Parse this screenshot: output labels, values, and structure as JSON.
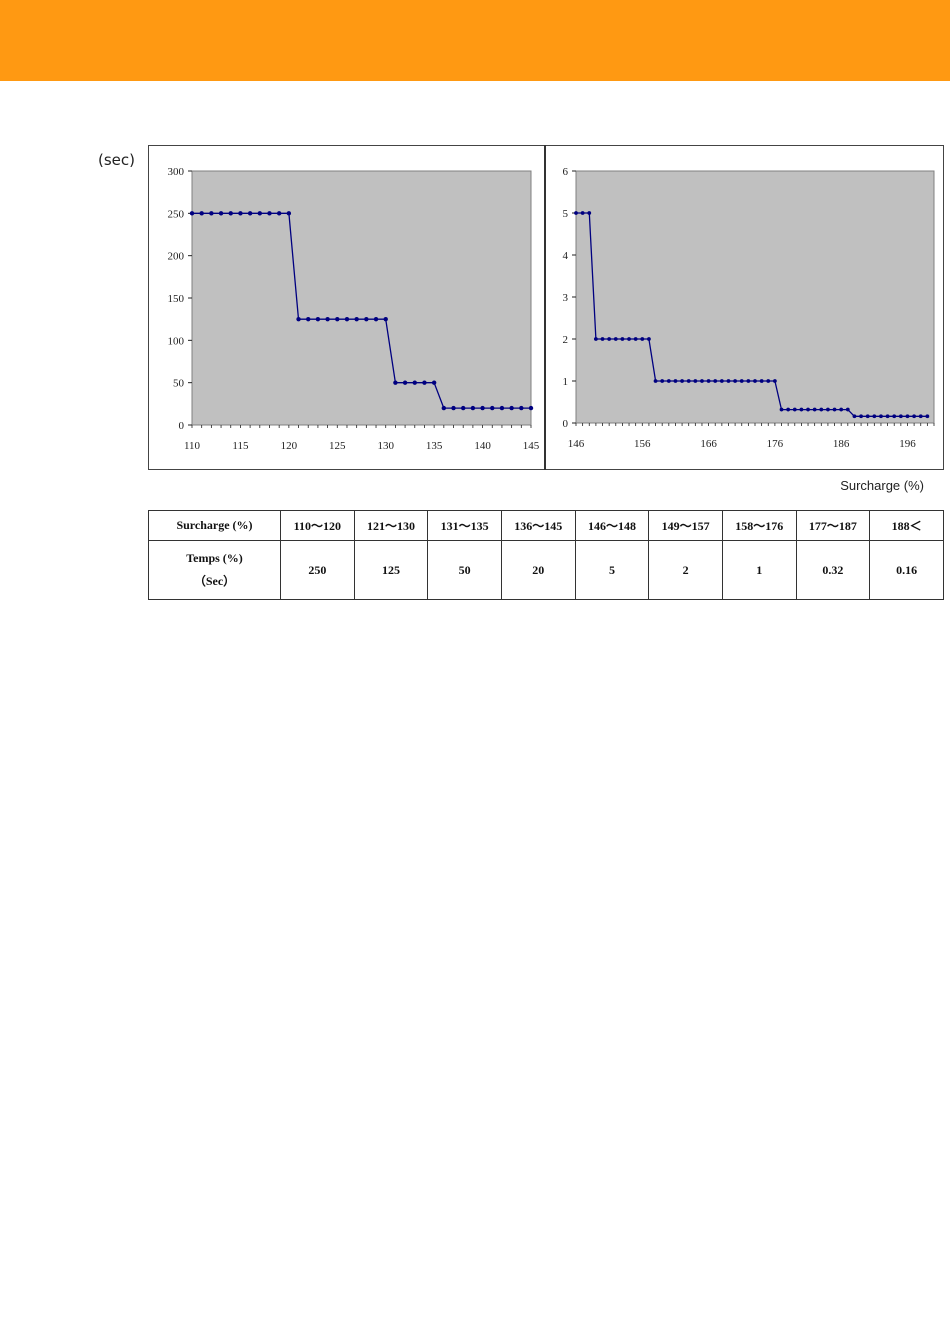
{
  "unit_label": "(sec)",
  "x_caption": "Surcharge (%)",
  "colors": {
    "header_band": "#ff9912",
    "plot_bg": "#c0c0c0",
    "series": "#000080"
  },
  "chart_data": [
    {
      "type": "line",
      "xlim": [
        110,
        145
      ],
      "ylim": [
        0,
        300
      ],
      "x_ticks": [
        "110",
        "115",
        "120",
        "125",
        "130",
        "135",
        "140",
        "145"
      ],
      "y_ticks": [
        "0",
        "50",
        "100",
        "150",
        "200",
        "250",
        "300"
      ],
      "grid": false,
      "series": [
        {
          "x": [
            110,
            111,
            112,
            113,
            114,
            115,
            116,
            117,
            118,
            119,
            120,
            121,
            122,
            123,
            124,
            125,
            126,
            127,
            128,
            129,
            130,
            131,
            132,
            133,
            134,
            135,
            136,
            137,
            138,
            139,
            140,
            141,
            142,
            143,
            144,
            145
          ],
          "y": [
            250,
            250,
            250,
            250,
            250,
            250,
            250,
            250,
            250,
            250,
            250,
            125,
            125,
            125,
            125,
            125,
            125,
            125,
            125,
            125,
            125,
            50,
            50,
            50,
            50,
            50,
            20,
            20,
            20,
            20,
            20,
            20,
            20,
            20,
            20,
            20
          ]
        }
      ]
    },
    {
      "type": "line",
      "xlim": [
        146,
        200
      ],
      "ylim": [
        0,
        6
      ],
      "x_ticks": [
        "146",
        "156",
        "166",
        "176",
        "186",
        "196"
      ],
      "y_ticks": [
        "0",
        "1",
        "2",
        "3",
        "4",
        "5",
        "6"
      ],
      "grid": false,
      "series": [
        {
          "x": [
            146,
            147,
            148,
            149,
            150,
            151,
            152,
            153,
            154,
            155,
            156,
            157,
            158,
            159,
            160,
            161,
            162,
            163,
            164,
            165,
            166,
            167,
            168,
            169,
            170,
            171,
            172,
            173,
            174,
            175,
            176,
            177,
            178,
            179,
            180,
            181,
            182,
            183,
            184,
            185,
            186,
            187,
            188,
            189,
            190,
            191,
            192,
            193,
            194,
            195,
            196,
            197,
            198,
            199
          ],
          "y": [
            5,
            5,
            5,
            2,
            2,
            2,
            2,
            2,
            2,
            2,
            2,
            2,
            1,
            1,
            1,
            1,
            1,
            1,
            1,
            1,
            1,
            1,
            1,
            1,
            1,
            1,
            1,
            1,
            1,
            1,
            1,
            0.32,
            0.32,
            0.32,
            0.32,
            0.32,
            0.32,
            0.32,
            0.32,
            0.32,
            0.32,
            0.32,
            0.16,
            0.16,
            0.16,
            0.16,
            0.16,
            0.16,
            0.16,
            0.16,
            0.16,
            0.16,
            0.16,
            0.16
          ]
        }
      ]
    }
  ],
  "table": {
    "row1_header": "Surcharge (%)",
    "row2_header": "Temps (%)",
    "row2_subheader": "（Sec）",
    "ranges": [
      "110～120",
      "121～130",
      "131～135",
      "136～145",
      "146～148",
      "149～157",
      "158～176",
      "177～187",
      "188＜"
    ],
    "times": [
      "250",
      "125",
      "50",
      "20",
      "5",
      "2",
      "1",
      "0.32",
      "0.16"
    ]
  }
}
